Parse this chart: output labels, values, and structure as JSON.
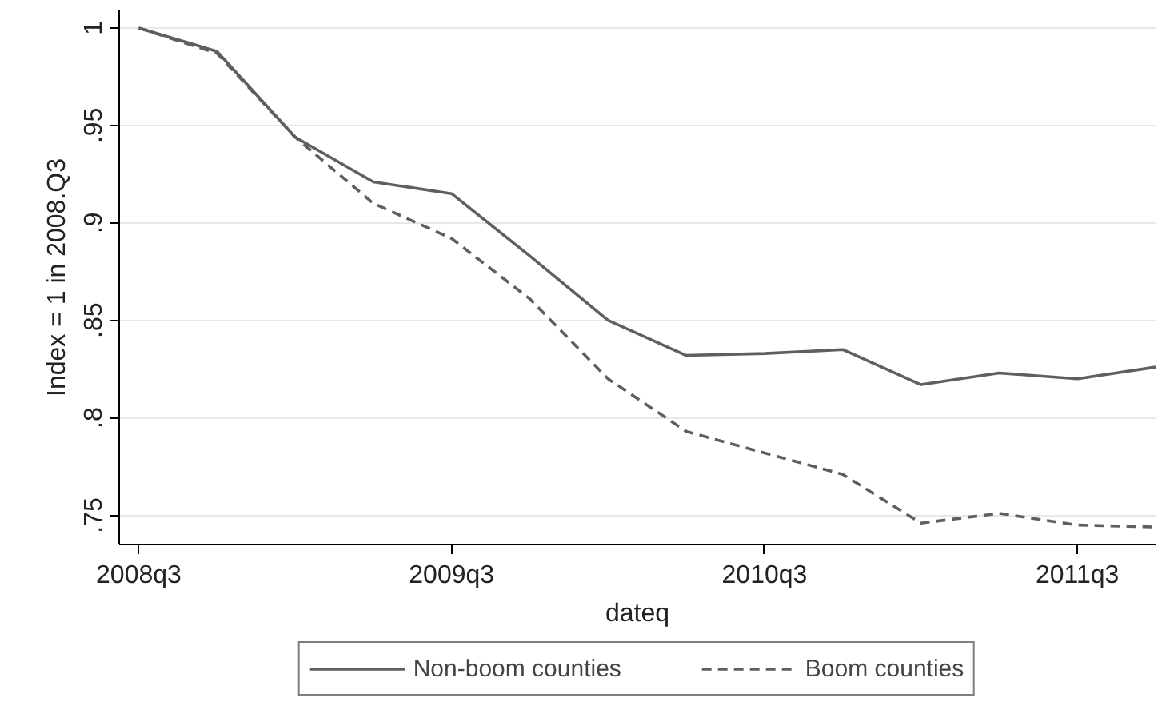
{
  "chart_data": {
    "type": "line",
    "xlabel": "dateq",
    "ylabel": "Index = 1 in 2008.Q3",
    "categories": [
      "2008q3",
      null,
      null,
      null,
      "2009q3",
      null,
      null,
      null,
      "2010q3",
      null,
      null,
      null,
      "2011q3",
      null
    ],
    "series": [
      {
        "name": "Non-boom counties",
        "color": "#5f5f5f",
        "line_style": "solid",
        "values": [
          1,
          0.988,
          0.944,
          0.921,
          0.915,
          0.883,
          0.85,
          0.832,
          0.833,
          0.835,
          0.817,
          0.823,
          0.82,
          0.826
        ]
      },
      {
        "name": "Boom counties",
        "color": "#5f5f5f",
        "line_style": "dashed",
        "values": [
          1,
          0.987,
          0.944,
          0.91,
          0.892,
          0.861,
          0.82,
          0.793,
          0.782,
          0.771,
          0.746,
          0.751,
          0.745,
          0.744
        ]
      }
    ],
    "ylim": [
      0.735,
      1.009
    ],
    "yticks": [
      {
        "value": 0.75,
        "label": ".75"
      },
      {
        "value": 0.8,
        "label": ".8"
      },
      {
        "value": 0.85,
        "label": ".85"
      },
      {
        "value": 0.9,
        "label": ".9"
      },
      {
        "value": 0.95,
        "label": ".95"
      },
      {
        "value": 1,
        "label": "1"
      }
    ],
    "grid": "y",
    "legend": "bottom",
    "marker": "none"
  }
}
